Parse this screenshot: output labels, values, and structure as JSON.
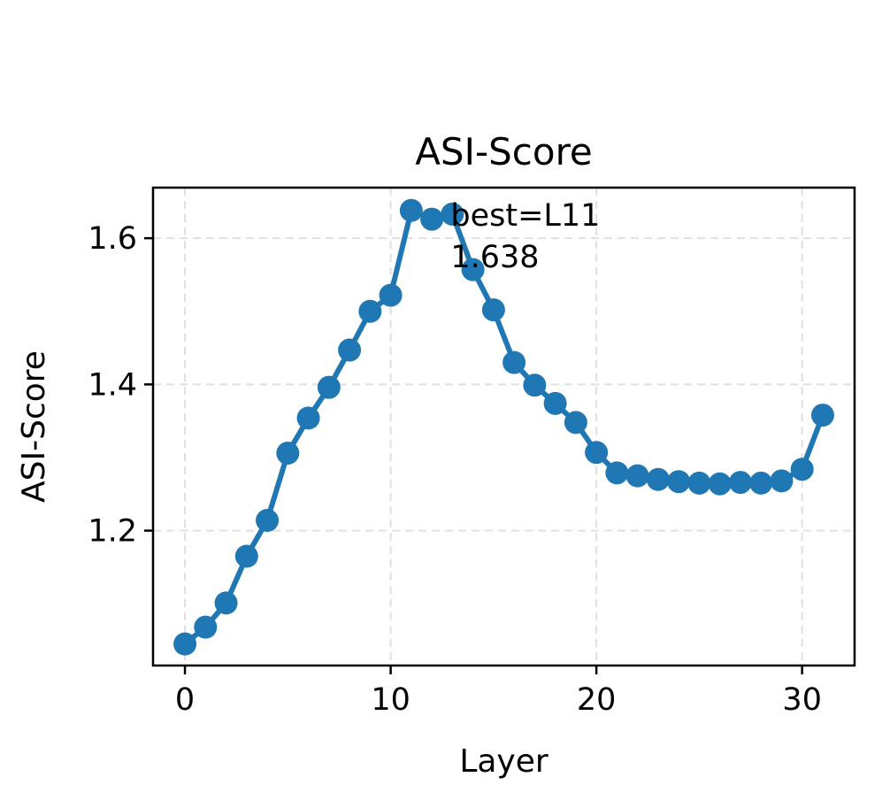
{
  "chart_data": {
    "type": "line",
    "title": "ASI-Score",
    "xlabel": "Layer",
    "ylabel": "ASI-Score",
    "xlim": [
      -1.55,
      32.55
    ],
    "ylim": [
      1.0155,
      1.6692
    ],
    "xticks": [
      0,
      10,
      20,
      30
    ],
    "yticks": [
      1.2,
      1.4,
      1.6
    ],
    "ytick_labels": [
      "1.2",
      "1.4",
      "1.6"
    ],
    "grid": true,
    "color": "#1f77b4",
    "annotation": {
      "lines": [
        "best=L11",
        "1.638"
      ],
      "x": 13,
      "y": 1.638
    },
    "series": [
      {
        "x": [
          0,
          1,
          2,
          3,
          4,
          5,
          6,
          7,
          8,
          9,
          10,
          11,
          12,
          13,
          14,
          15,
          16,
          17,
          18,
          19,
          20,
          21,
          22,
          23,
          24,
          25,
          26,
          27,
          28,
          29,
          30,
          31
        ],
        "values": [
          1.045,
          1.068,
          1.101,
          1.165,
          1.214,
          1.306,
          1.354,
          1.396,
          1.447,
          1.5,
          1.522,
          1.638,
          1.626,
          1.633,
          1.557,
          1.502,
          1.43,
          1.399,
          1.374,
          1.348,
          1.307,
          1.279,
          1.275,
          1.27,
          1.267,
          1.265,
          1.264,
          1.266,
          1.265,
          1.268,
          1.284,
          1.358
        ]
      }
    ]
  }
}
